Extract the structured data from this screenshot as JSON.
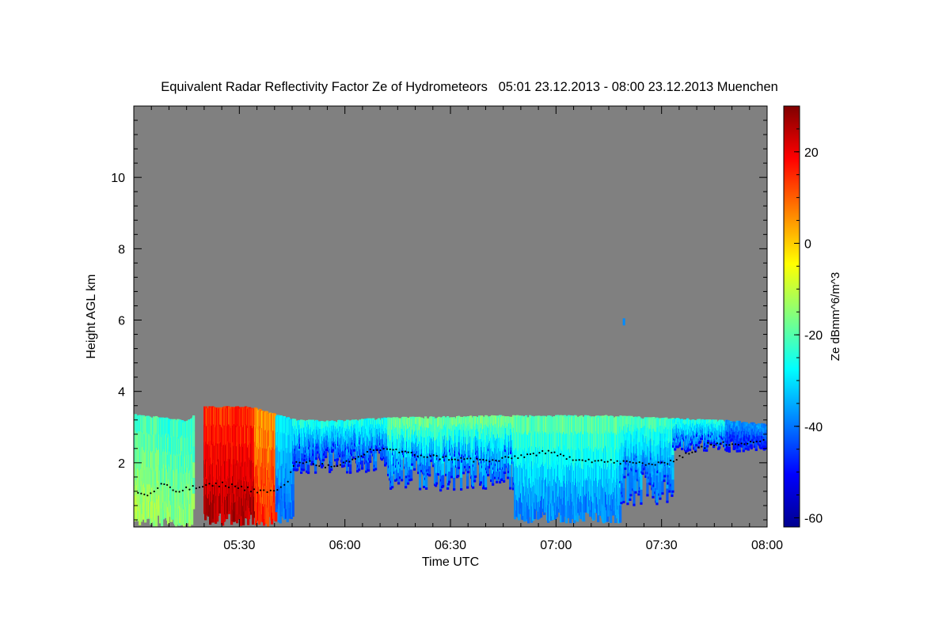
{
  "chart_data": {
    "type": "heatmap",
    "title": "Equivalent Radar Reflectivity Factor Ze of Hydrometeors   05:01 23.12.2013 - 08:00 23.12.2013 Muenchen",
    "xlabel": "Time UTC",
    "ylabel": "Height AGL km",
    "colorbar_label": "Ze dBmm^6/m^3",
    "x_unit": "hours UTC",
    "xlim": [
      5.0,
      8.0
    ],
    "ylim": [
      0.2,
      12.0
    ],
    "x_ticks": [
      {
        "value": 5.5,
        "label": "05:30"
      },
      {
        "value": 6.0,
        "label": "06:00"
      },
      {
        "value": 6.5,
        "label": "06:30"
      },
      {
        "value": 7.0,
        "label": "07:00"
      },
      {
        "value": 7.5,
        "label": "07:30"
      },
      {
        "value": 8.0,
        "label": "08:00"
      }
    ],
    "y_ticks": [
      {
        "value": 2,
        "label": "2"
      },
      {
        "value": 4,
        "label": "4"
      },
      {
        "value": 6,
        "label": "6"
      },
      {
        "value": 8,
        "label": "8"
      },
      {
        "value": 10,
        "label": "10"
      }
    ],
    "colorbar_range": [
      -62,
      30
    ],
    "colorbar_ticks": [
      {
        "value": 20,
        "label": "20"
      },
      {
        "value": 0,
        "label": "0"
      },
      {
        "value": -20,
        "label": "-20"
      },
      {
        "value": -40,
        "label": "-40"
      },
      {
        "value": -60,
        "label": "-60"
      }
    ],
    "colormap": [
      "#00008f",
      "#0000ff",
      "#0080ff",
      "#00ffff",
      "#80ff80",
      "#ffff00",
      "#ff8000",
      "#ff0000",
      "#800000"
    ],
    "background_color": "#808080",
    "cloud_top_km": [
      [
        5.0,
        3.35
      ],
      [
        5.25,
        3.15
      ],
      [
        5.33,
        3.55
      ],
      [
        5.55,
        3.55
      ],
      [
        5.75,
        3.2
      ],
      [
        5.9,
        3.15
      ],
      [
        6.25,
        3.25
      ],
      [
        6.75,
        3.3
      ],
      [
        7.25,
        3.3
      ],
      [
        7.65,
        3.2
      ],
      [
        7.85,
        3.15
      ],
      [
        8.0,
        3.05
      ]
    ],
    "echo_columns": [
      {
        "t_start": 5.0,
        "t_end": 5.12,
        "base_km": 0.2,
        "ze_top": -22,
        "ze_base": -12
      },
      {
        "t_start": 5.12,
        "t_end": 5.28,
        "base_km": 0.2,
        "ze_top": -24,
        "ze_base": -15
      },
      {
        "t_start": 5.33,
        "t_end": 5.57,
        "base_km": 0.2,
        "ze_top": 14,
        "ze_base": 26
      },
      {
        "t_start": 5.57,
        "t_end": 5.67,
        "base_km": 0.2,
        "ze_top": 4,
        "ze_base": 16
      },
      {
        "t_start": 5.67,
        "t_end": 5.75,
        "base_km": 0.3,
        "ze_top": -28,
        "ze_base": -42
      },
      {
        "t_start": 5.75,
        "t_end": 6.2,
        "base_km": 1.7,
        "ze_top": -24,
        "ze_base": -45
      },
      {
        "t_start": 6.2,
        "t_end": 6.8,
        "base_km": 1.2,
        "ze_top": -16,
        "ze_base": -42
      },
      {
        "t_start": 6.8,
        "t_end": 7.3,
        "base_km": 0.3,
        "ze_top": -18,
        "ze_base": -40
      },
      {
        "t_start": 7.3,
        "t_end": 7.55,
        "base_km": 0.8,
        "ze_top": -20,
        "ze_base": -42
      },
      {
        "t_start": 7.55,
        "t_end": 7.8,
        "base_km": 2.3,
        "ze_top": -24,
        "ze_base": -42
      },
      {
        "t_start": 7.8,
        "t_end": 8.0,
        "base_km": 2.3,
        "ze_top": -36,
        "ze_base": -48
      }
    ],
    "cloud_base_km": [
      [
        5.02,
        1.15
      ],
      [
        5.08,
        1.1
      ],
      [
        5.13,
        1.4
      ],
      [
        5.2,
        1.2
      ],
      [
        5.28,
        1.3
      ],
      [
        5.42,
        1.4
      ],
      [
        5.6,
        1.2
      ],
      [
        5.68,
        1.2
      ],
      [
        5.73,
        1.5
      ],
      [
        5.77,
        2.05
      ],
      [
        5.85,
        2.0
      ],
      [
        5.95,
        1.85
      ],
      [
        6.05,
        2.1
      ],
      [
        6.12,
        2.35
      ],
      [
        6.2,
        2.4
      ],
      [
        6.3,
        2.25
      ],
      [
        6.45,
        2.15
      ],
      [
        6.55,
        2.1
      ],
      [
        6.7,
        2.05
      ],
      [
        6.85,
        2.2
      ],
      [
        6.95,
        2.3
      ],
      [
        7.05,
        2.15
      ],
      [
        7.2,
        2.05
      ],
      [
        7.35,
        2.0
      ],
      [
        7.5,
        1.95
      ],
      [
        7.6,
        2.2
      ],
      [
        7.72,
        2.5
      ],
      [
        7.85,
        2.55
      ],
      [
        7.95,
        2.6
      ],
      [
        8.0,
        2.65
      ]
    ],
    "small_echo": {
      "t": 7.32,
      "z_start": 5.85,
      "z_end": 6.05,
      "ze": -38
    }
  }
}
